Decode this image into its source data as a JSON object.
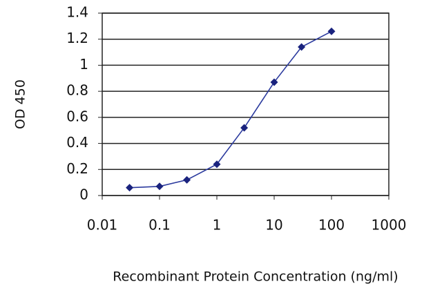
{
  "chart_data": {
    "type": "line",
    "x_label": "Recombinant Protein Concentration (ng/ml)",
    "y_label": "OD 450",
    "x": [
      0.03,
      0.1,
      0.3,
      1,
      3,
      10,
      30,
      100
    ],
    "values": [
      0.06,
      0.07,
      0.12,
      0.24,
      0.52,
      0.87,
      1.14,
      1.26
    ],
    "color": "#2b3a9e",
    "marker": "diamond",
    "marker_color": "#1a237e",
    "xscale": "log",
    "xlim": [
      0.01,
      1000
    ],
    "xticks": [
      0.01,
      0.1,
      1,
      10,
      100,
      1000
    ],
    "ylim": [
      0,
      1.4
    ],
    "yticks": [
      0,
      0.2,
      0.4,
      0.6,
      0.8,
      1,
      1.2,
      1.4
    ],
    "grid": true
  }
}
